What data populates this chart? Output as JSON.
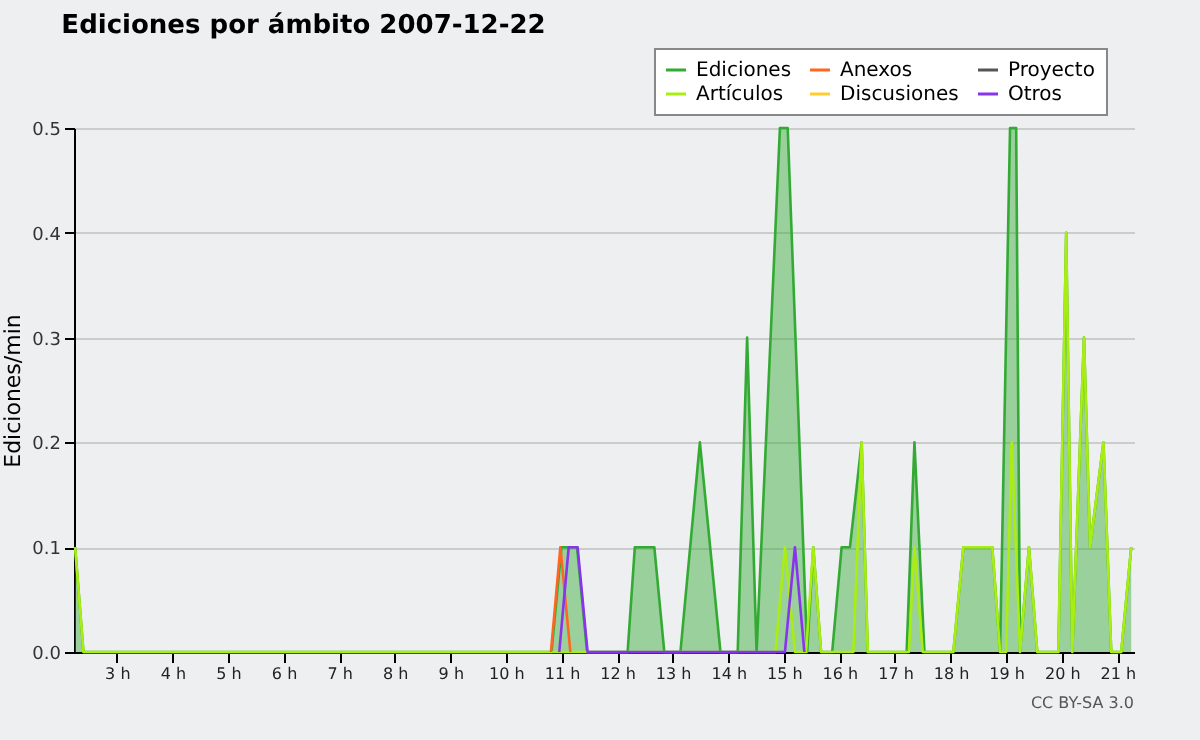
{
  "chart_data": {
    "type": "line",
    "title": "Ediciones por ámbito  2007-12-22",
    "ylabel": "Ediciones/min",
    "annotations": [
      "CC BY-SA 3.0"
    ],
    "xlim": [
      2.23,
      21.3
    ],
    "ylim": [
      0,
      0.5
    ],
    "xticks": [
      {
        "value": 3,
        "label": "3 h"
      },
      {
        "value": 4,
        "label": "4 h"
      },
      {
        "value": 5,
        "label": "5 h"
      },
      {
        "value": 6,
        "label": "6 h"
      },
      {
        "value": 7,
        "label": "7 h"
      },
      {
        "value": 8,
        "label": "8 h"
      },
      {
        "value": 9,
        "label": "9 h"
      },
      {
        "value": 10,
        "label": "10 h"
      },
      {
        "value": 11,
        "label": "11 h"
      },
      {
        "value": 12,
        "label": "12 h"
      },
      {
        "value": 13,
        "label": "13 h"
      },
      {
        "value": 14,
        "label": "14 h"
      },
      {
        "value": 15,
        "label": "15 h"
      },
      {
        "value": 16,
        "label": "16 h"
      },
      {
        "value": 17,
        "label": "17 h"
      },
      {
        "value": 18,
        "label": "18 h"
      },
      {
        "value": 19,
        "label": "19 h"
      },
      {
        "value": 20,
        "label": "20 h"
      },
      {
        "value": 21,
        "label": "21 h"
      }
    ],
    "yticks": [
      {
        "value": 0,
        "label": "0.0"
      },
      0.1,
      0.2,
      0.3,
      0.4,
      0.5
    ],
    "grid": "y",
    "legend": "top right",
    "series": [
      {
        "name": "Ediciones",
        "type": "area",
        "color": "#33aa33",
        "x": [
          2.25,
          2.4,
          10.82,
          11.0,
          11.28,
          11.46,
          12.19,
          12.32,
          12.67,
          12.85,
          13.14,
          13.49,
          13.86,
          14.17,
          14.34,
          14.51,
          14.93,
          15.07,
          15.42,
          15.53,
          15.67,
          15.87,
          16.04,
          16.19,
          16.4,
          16.51,
          17.21,
          17.35,
          17.53,
          18.05,
          18.23,
          18.75,
          18.89,
          19.07,
          19.18,
          19.25,
          19.41,
          19.56,
          19.94,
          20.08,
          20.19,
          20.4,
          20.51,
          20.75,
          20.89,
          21.07,
          21.25
        ],
        "values": [
          0.1,
          0,
          0,
          0.1,
          0.1,
          0,
          0,
          0.1,
          0.1,
          0,
          0,
          0.2,
          0,
          0,
          0.3,
          0,
          0.5,
          0.5,
          0,
          0.1,
          0,
          0,
          0.1,
          0.1,
          0.2,
          0,
          0,
          0.2,
          0,
          0,
          0.1,
          0.1,
          0,
          0.5,
          0.5,
          0,
          0.1,
          0,
          0,
          0.4,
          0,
          0.3,
          0.1,
          0.2,
          0,
          0,
          0.1
        ]
      },
      {
        "name": "Artículos",
        "color": "#aaee11",
        "x": [
          2.25,
          2.4,
          14.85,
          15.02,
          15.2,
          15.4,
          15.53,
          15.67,
          16.25,
          16.4,
          16.51,
          17.25,
          17.35,
          17.5,
          18.05,
          18.23,
          18.75,
          18.89,
          19.0,
          19.1,
          19.25,
          19.41,
          19.56,
          19.94,
          20.08,
          20.19,
          20.4,
          20.51,
          20.75,
          20.89,
          21.07,
          21.25
        ],
        "values": [
          0.1,
          0,
          0,
          0.1,
          0,
          0,
          0.1,
          0,
          0,
          0.2,
          0,
          0,
          0.1,
          0,
          0,
          0.1,
          0.1,
          0,
          0,
          0.2,
          0,
          0.1,
          0,
          0,
          0.4,
          0,
          0.3,
          0.1,
          0.2,
          0,
          0,
          0.1
        ]
      },
      {
        "name": "Anexos",
        "color": "#ff6622",
        "x": [
          10.81,
          10.98,
          11.16
        ],
        "values": [
          0,
          0.1,
          0
        ]
      },
      {
        "name": "Discusiones",
        "color": "#ffcc33"
      },
      {
        "name": "Proyecto",
        "color": "#555555"
      },
      {
        "name": "Otros",
        "color": "#8833ee",
        "x": [
          10.96,
          11.13,
          11.29,
          11.47,
          15.02,
          15.2,
          15.37
        ],
        "values": [
          0,
          0.1,
          0.1,
          0,
          0,
          0.1,
          0
        ]
      }
    ]
  }
}
